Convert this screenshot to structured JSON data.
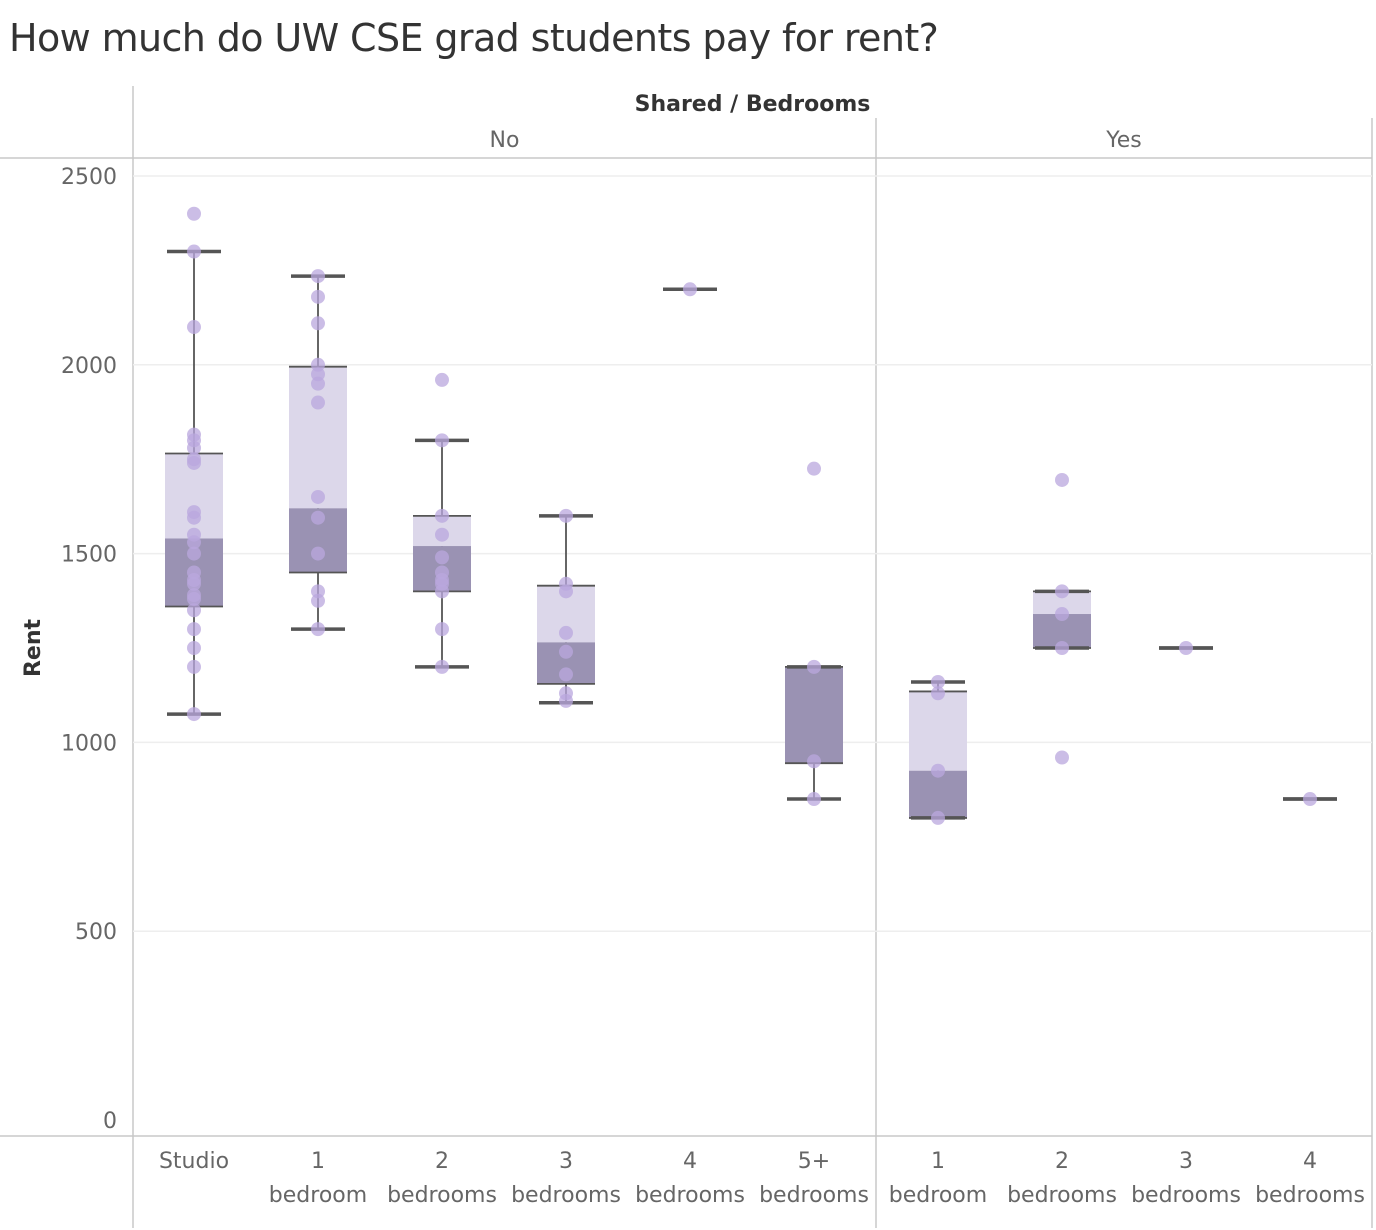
{
  "title": "How much do UW CSE grad students pay for rent?",
  "colors": {
    "point": "#b9a7de",
    "box_upper": "#dcd7ea",
    "box_lower": "#9a92b3",
    "whisker": "#555555",
    "grid": "#eeeeee",
    "border": "#c8c8c8",
    "text": "#666666"
  },
  "chart_data": {
    "type": "box",
    "column_header": "Shared / Bedrooms",
    "ylabel": "Rent",
    "ylim": [
      0,
      2500
    ],
    "yticks": [
      0,
      500,
      1000,
      1500,
      2000,
      2500
    ],
    "grid": true,
    "panels": [
      {
        "name": "No",
        "groups": [
          {
            "label": [
              "Studio"
            ],
            "whisker_low": 1075,
            "q1": 1360,
            "median": 1540,
            "q3": 1765,
            "whisker_high": 2300,
            "points": [
              2400,
              2300,
              2100,
              1815,
              1800,
              1780,
              1750,
              1740,
              1610,
              1595,
              1550,
              1530,
              1500,
              1450,
              1430,
              1420,
              1390,
              1380,
              1350,
              1300,
              1250,
              1200,
              1075
            ]
          },
          {
            "label": [
              "1",
              "bedroom"
            ],
            "whisker_low": 1300,
            "q1": 1450,
            "median": 1620,
            "q3": 1995,
            "whisker_high": 2235,
            "points": [
              2235,
              2180,
              2110,
              2000,
              1975,
              1950,
              1900,
              1650,
              1595,
              1500,
              1400,
              1375,
              1300
            ]
          },
          {
            "label": [
              "2",
              "bedrooms"
            ],
            "whisker_low": 1200,
            "q1": 1400,
            "median": 1520,
            "q3": 1600,
            "whisker_high": 1800,
            "points": [
              1960,
              1800,
              1600,
              1550,
              1490,
              1450,
              1430,
              1420,
              1400,
              1300,
              1200
            ]
          },
          {
            "label": [
              "3",
              "bedrooms"
            ],
            "whisker_low": 1105,
            "q1": 1155,
            "median": 1265,
            "q3": 1415,
            "whisker_high": 1600,
            "points": [
              1600,
              1420,
              1400,
              1290,
              1240,
              1180,
              1130,
              1110
            ]
          },
          {
            "label": [
              "4",
              "bedrooms"
            ],
            "whisker_low": 2200,
            "q1": 2200,
            "median": 2200,
            "q3": 2200,
            "whisker_high": 2200,
            "points": [
              2200
            ]
          },
          {
            "label": [
              "5+",
              "bedrooms"
            ],
            "whisker_low": 850,
            "q1": 945,
            "median": 1200,
            "q3": 1200,
            "whisker_high": 1200,
            "points": [
              1725,
              1200,
              950,
              850
            ]
          }
        ]
      },
      {
        "name": "Yes",
        "groups": [
          {
            "label": [
              "1",
              "bedroom"
            ],
            "whisker_low": 800,
            "q1": 800,
            "median": 925,
            "q3": 1135,
            "whisker_high": 1160,
            "points": [
              1160,
              1130,
              925,
              800
            ]
          },
          {
            "label": [
              "2",
              "bedrooms"
            ],
            "whisker_low": 1250,
            "q1": 1250,
            "median": 1340,
            "q3": 1400,
            "whisker_high": 1400,
            "points": [
              1695,
              1400,
              1340,
              1250,
              960
            ]
          },
          {
            "label": [
              "3",
              "bedrooms"
            ],
            "whisker_low": 1250,
            "q1": 1250,
            "median": 1250,
            "q3": 1250,
            "whisker_high": 1250,
            "points": [
              1250
            ]
          },
          {
            "label": [
              "4",
              "bedrooms"
            ],
            "whisker_low": 850,
            "q1": 850,
            "median": 850,
            "q3": 850,
            "whisker_high": 850,
            "points": [
              850
            ]
          }
        ]
      }
    ]
  }
}
